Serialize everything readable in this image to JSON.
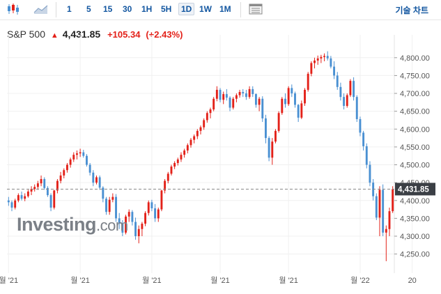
{
  "toolbar": {
    "timeframes": [
      "1",
      "5",
      "15",
      "30",
      "1H",
      "5H",
      "1D",
      "1W",
      "1M"
    ],
    "active": "1D",
    "tech_chart_label": "기술 차트"
  },
  "header": {
    "name": "S&P 500",
    "last": "4,431.85",
    "change": "+105.34",
    "change_pct": "(+2.43%)"
  },
  "logo": {
    "main": "Investing",
    "suffix": ".com"
  },
  "colors": {
    "up": "#e32119",
    "down": "#4a90d2",
    "price_tag": "#3b3f45"
  },
  "chart_data": {
    "type": "candlestick",
    "ylim": [
      4220,
      4825
    ],
    "yticks": [
      "4,250.00",
      "4,300.00",
      "4,350.00",
      "4,400.00",
      "4,450.00",
      "4,500.00",
      "4,550.00",
      "4,600.00",
      "4,650.00",
      "4,700.00",
      "4,750.00",
      "4,800.00"
    ],
    "ytick_values": [
      4250,
      4300,
      4350,
      4400,
      4450,
      4500,
      4550,
      4600,
      4650,
      4700,
      4750,
      4800
    ],
    "xticks": [
      "월 '21",
      "월 '21",
      "월 '21",
      "월 '21",
      "월 '21",
      "월 '22",
      "20"
    ],
    "xtick_index": [
      0,
      22,
      44,
      65,
      86,
      108,
      124
    ],
    "last_price": 4431.85,
    "last_price_label": "4,431.85",
    "ohlc": [
      [
        4400,
        4410,
        4385,
        4395
      ],
      [
        4395,
        4400,
        4370,
        4380
      ],
      [
        4380,
        4405,
        4375,
        4400
      ],
      [
        4400,
        4420,
        4395,
        4415
      ],
      [
        4415,
        4425,
        4400,
        4405
      ],
      [
        4405,
        4420,
        4398,
        4412
      ],
      [
        4412,
        4430,
        4408,
        4425
      ],
      [
        4425,
        4440,
        4415,
        4432
      ],
      [
        4432,
        4445,
        4425,
        4438
      ],
      [
        4438,
        4455,
        4430,
        4448
      ],
      [
        4448,
        4470,
        4440,
        4460
      ],
      [
        4460,
        4465,
        4430,
        4435
      ],
      [
        4435,
        4440,
        4410,
        4415
      ],
      [
        4415,
        4420,
        4370,
        4380
      ],
      [
        4380,
        4430,
        4375,
        4428
      ],
      [
        4428,
        4460,
        4420,
        4455
      ],
      [
        4455,
        4480,
        4448,
        4470
      ],
      [
        4470,
        4490,
        4462,
        4485
      ],
      [
        4485,
        4505,
        4478,
        4500
      ],
      [
        4500,
        4520,
        4492,
        4515
      ],
      [
        4515,
        4535,
        4508,
        4528
      ],
      [
        4528,
        4540,
        4515,
        4532
      ],
      [
        4532,
        4545,
        4522,
        4535
      ],
      [
        4535,
        4542,
        4520,
        4525
      ],
      [
        4525,
        4530,
        4495,
        4500
      ],
      [
        4500,
        4505,
        4470,
        4478
      ],
      [
        4478,
        4485,
        4440,
        4450
      ],
      [
        4450,
        4470,
        4445,
        4465
      ],
      [
        4465,
        4470,
        4430,
        4436
      ],
      [
        4436,
        4440,
        4395,
        4405
      ],
      [
        4405,
        4410,
        4360,
        4368
      ],
      [
        4368,
        4410,
        4360,
        4402
      ],
      [
        4402,
        4420,
        4395,
        4410
      ],
      [
        4410,
        4418,
        4340,
        4350
      ],
      [
        4350,
        4365,
        4320,
        4335
      ],
      [
        4335,
        4345,
        4300,
        4310
      ],
      [
        4310,
        4360,
        4305,
        4355
      ],
      [
        4355,
        4375,
        4340,
        4368
      ],
      [
        4368,
        4373,
        4330,
        4340
      ],
      [
        4340,
        4352,
        4290,
        4300
      ],
      [
        4300,
        4330,
        4280,
        4320
      ],
      [
        4320,
        4340,
        4300,
        4335
      ],
      [
        4335,
        4370,
        4328,
        4365
      ],
      [
        4365,
        4400,
        4358,
        4395
      ],
      [
        4395,
        4402,
        4370,
        4378
      ],
      [
        4378,
        4390,
        4340,
        4350
      ],
      [
        4350,
        4380,
        4340,
        4375
      ],
      [
        4375,
        4430,
        4370,
        4428
      ],
      [
        4428,
        4460,
        4420,
        4455
      ],
      [
        4455,
        4480,
        4448,
        4475
      ],
      [
        4475,
        4500,
        4470,
        4495
      ],
      [
        4495,
        4510,
        4488,
        4505
      ],
      [
        4505,
        4520,
        4498,
        4515
      ],
      [
        4515,
        4535,
        4508,
        4528
      ],
      [
        4528,
        4545,
        4520,
        4540
      ],
      [
        4540,
        4560,
        4532,
        4555
      ],
      [
        4555,
        4575,
        4548,
        4570
      ],
      [
        4570,
        4585,
        4560,
        4580
      ],
      [
        4580,
        4600,
        4572,
        4595
      ],
      [
        4595,
        4610,
        4585,
        4605
      ],
      [
        4605,
        4630,
        4598,
        4625
      ],
      [
        4625,
        4650,
        4618,
        4645
      ],
      [
        4645,
        4660,
        4630,
        4655
      ],
      [
        4655,
        4690,
        4650,
        4685
      ],
      [
        4685,
        4720,
        4678,
        4710
      ],
      [
        4710,
        4715,
        4675,
        4682
      ],
      [
        4682,
        4705,
        4670,
        4698
      ],
      [
        4698,
        4712,
        4680,
        4688
      ],
      [
        4688,
        4692,
        4650,
        4660
      ],
      [
        4660,
        4690,
        4655,
        4685
      ],
      [
        4685,
        4700,
        4675,
        4695
      ],
      [
        4695,
        4710,
        4688,
        4704
      ],
      [
        4704,
        4712,
        4690,
        4700
      ],
      [
        4700,
        4710,
        4682,
        4690
      ],
      [
        4690,
        4720,
        4685,
        4712
      ],
      [
        4712,
        4720,
        4690,
        4698
      ],
      [
        4698,
        4700,
        4660,
        4668
      ],
      [
        4668,
        4690,
        4650,
        4685
      ],
      [
        4685,
        4692,
        4620,
        4630
      ],
      [
        4630,
        4640,
        4560,
        4575
      ],
      [
        4575,
        4580,
        4510,
        4520
      ],
      [
        4520,
        4575,
        4500,
        4565
      ],
      [
        4565,
        4600,
        4560,
        4595
      ],
      [
        4595,
        4650,
        4590,
        4645
      ],
      [
        4645,
        4690,
        4640,
        4685
      ],
      [
        4685,
        4700,
        4660,
        4670
      ],
      [
        4670,
        4720,
        4665,
        4715
      ],
      [
        4715,
        4725,
        4690,
        4700
      ],
      [
        4700,
        4705,
        4660,
        4668
      ],
      [
        4668,
        4670,
        4620,
        4632
      ],
      [
        4632,
        4680,
        4628,
        4672
      ],
      [
        4672,
        4715,
        4665,
        4710
      ],
      [
        4710,
        4760,
        4705,
        4755
      ],
      [
        4755,
        4790,
        4748,
        4785
      ],
      [
        4785,
        4800,
        4770,
        4792
      ],
      [
        4792,
        4806,
        4780,
        4798
      ],
      [
        4798,
        4808,
        4785,
        4802
      ],
      [
        4802,
        4812,
        4790,
        4805
      ],
      [
        4805,
        4818,
        4792,
        4798
      ],
      [
        4798,
        4805,
        4770,
        4775
      ],
      [
        4775,
        4790,
        4740,
        4750
      ],
      [
        4750,
        4760,
        4710,
        4718
      ],
      [
        4718,
        4730,
        4680,
        4690
      ],
      [
        4690,
        4700,
        4655,
        4665
      ],
      [
        4665,
        4700,
        4660,
        4695
      ],
      [
        4695,
        4740,
        4690,
        4735
      ],
      [
        4735,
        4745,
        4680,
        4690
      ],
      [
        4690,
        4695,
        4620,
        4628
      ],
      [
        4628,
        4635,
        4580,
        4590
      ],
      [
        4590,
        4595,
        4540,
        4552
      ],
      [
        4552,
        4560,
        4490,
        4500
      ],
      [
        4500,
        4510,
        4440,
        4450
      ],
      [
        4450,
        4460,
        4400,
        4412
      ],
      [
        4412,
        4420,
        4345,
        4352
      ],
      [
        4352,
        4440,
        4300,
        4430
      ],
      [
        4430,
        4445,
        4300,
        4310
      ],
      [
        4310,
        4330,
        4230,
        4320
      ],
      [
        4320,
        4380,
        4300,
        4370
      ],
      [
        4370,
        4440,
        4365,
        4431.85
      ]
    ]
  }
}
